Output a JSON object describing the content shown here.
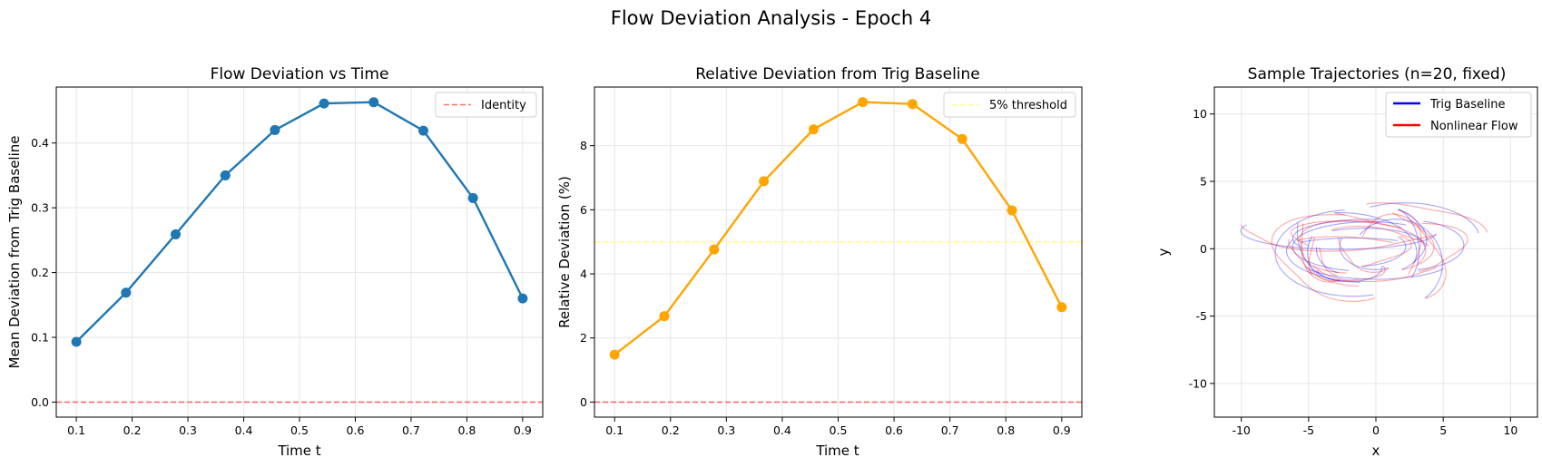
{
  "suptitle": "Flow Deviation Analysis - Epoch 4",
  "chart_data": [
    {
      "type": "line",
      "title": "Flow Deviation vs Time",
      "xlabel": "Time t",
      "ylabel": "Mean Deviation from Trig Baseline",
      "xlim": [
        0.064,
        0.936
      ],
      "ylim": [
        -0.0232,
        0.4864
      ],
      "xticks": [
        "0.1",
        "0.2",
        "0.3",
        "0.4",
        "0.5",
        "0.6",
        "0.7",
        "0.8",
        "0.9"
      ],
      "yticks": [
        "0.0",
        "0.1",
        "0.2",
        "0.3",
        "0.4"
      ],
      "grid": true,
      "legend": {
        "position": "top-right",
        "entries": [
          "Identity"
        ]
      },
      "series": [
        {
          "color": "#1f77b4",
          "marker": "circle",
          "x": [
            0.1,
            0.189,
            0.278,
            0.367,
            0.456,
            0.544,
            0.633,
            0.722,
            0.811,
            0.9
          ],
          "y": [
            0.093,
            0.169,
            0.259,
            0.35,
            0.42,
            0.461,
            0.463,
            0.419,
            0.315,
            0.16
          ]
        },
        {
          "name": "Identity",
          "color": "#ff6b6b",
          "style": "dashed",
          "hline": 0
        }
      ]
    },
    {
      "type": "line",
      "title": "Relative Deviation from Trig Baseline",
      "xlabel": "Time t",
      "ylabel": "Relative Deviation (%)",
      "xlim": [
        0.064,
        0.936
      ],
      "ylim": [
        -0.47,
        9.83
      ],
      "xticks": [
        "0.1",
        "0.2",
        "0.3",
        "0.4",
        "0.5",
        "0.6",
        "0.7",
        "0.8",
        "0.9"
      ],
      "yticks": [
        "0",
        "2",
        "4",
        "6",
        "8"
      ],
      "grid": true,
      "legend": {
        "position": "top-right",
        "entries": [
          "5% threshold"
        ]
      },
      "series": [
        {
          "color": "#ffa500",
          "marker": "circle",
          "x": [
            0.1,
            0.189,
            0.278,
            0.367,
            0.456,
            0.544,
            0.633,
            0.722,
            0.811,
            0.9
          ],
          "y": [
            1.48,
            2.68,
            4.76,
            6.89,
            8.51,
            9.36,
            9.3,
            8.21,
            5.98,
            2.96
          ]
        },
        {
          "name": "5% threshold",
          "color": "#ffff88",
          "style": "dashed",
          "hline": 5
        },
        {
          "color": "#ff6b6b",
          "style": "dashed",
          "hline": 0
        }
      ]
    },
    {
      "type": "line",
      "title": "Sample Trajectories (n=20, fixed)",
      "xlabel": "x",
      "ylabel": "y",
      "xlim": [
        -12,
        12
      ],
      "ylim": [
        -12.5,
        12
      ],
      "xticks": [
        "-10",
        "-5",
        "0",
        "5",
        "10"
      ],
      "yticks": [
        "-10",
        "-5",
        "0",
        "5",
        "10"
      ],
      "grid": true,
      "legend": {
        "position": "top-right",
        "entries": [
          "Trig Baseline",
          "Nonlinear Flow"
        ]
      },
      "series": [
        {
          "name": "Trig Baseline",
          "color": "#0000ff",
          "opacity": 0.35
        },
        {
          "name": "Nonlinear Flow",
          "color": "#ff0000",
          "opacity": 0.35
        }
      ],
      "trajectory_count": 20
    }
  ]
}
